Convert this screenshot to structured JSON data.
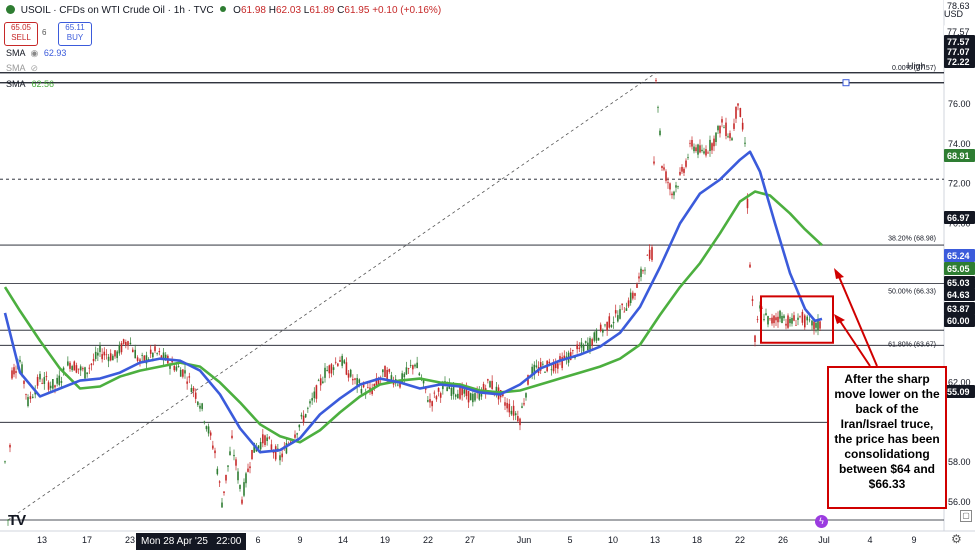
{
  "header": {
    "symbol": "USOIL · CFDs on WTI Crude Oil · 1h · TVC",
    "ohlc_prefix_o": "O",
    "open": "61.98",
    "ohlc_prefix_h": "H",
    "high": "62.03",
    "ohlc_prefix_l": "L",
    "low": "61.89",
    "ohlc_prefix_c": "C",
    "close": "61.95",
    "change": "+0.10 (+0.16%)",
    "sell_price": "65.05",
    "sell_label": "SELL",
    "spread": "6",
    "buy_price": "65.11",
    "buy_label": "BUY",
    "currency": "USD",
    "sma1_label": "SMA",
    "sma1_value": "62.93",
    "sma2_label": "SMA",
    "sma3_label": "SMA",
    "sma3_value": "62.56"
  },
  "colors": {
    "sma_blue": "#3b5bdb",
    "sma_green": "#4caf3f",
    "candle_up": "#2e7d32",
    "candle_down": "#c62828",
    "annotation": "#d00000"
  },
  "annotation_text": "After the sharp move lower on the back of the Iran/Israel truce, the price has been consolidationg between $64 and $66.33",
  "cursor_date_label": "Mon 28 Apr '25   22:00",
  "chart_data": {
    "type": "line",
    "title": "USOIL · CFDs on WTI Crude Oil · 1h · TVC",
    "ylim": [
      54.6,
      78.9
    ],
    "xlim": [
      0,
      975
    ],
    "y_ticks": [
      "76.00",
      "74.00",
      "72.00",
      "70.00",
      "68.00",
      "62.00",
      "58.00",
      "56.00"
    ],
    "x_ticks": [
      {
        "label": "13",
        "x": 42
      },
      {
        "label": "17",
        "x": 87
      },
      {
        "label": "23",
        "x": 130
      },
      {
        "label": "6",
        "x": 258
      },
      {
        "label": "9",
        "x": 300
      },
      {
        "label": "14",
        "x": 343
      },
      {
        "label": "19",
        "x": 385
      },
      {
        "label": "22",
        "x": 428
      },
      {
        "label": "27",
        "x": 470
      },
      {
        "label": "Jun",
        "x": 524
      },
      {
        "label": "5",
        "x": 570
      },
      {
        "label": "10",
        "x": 613
      },
      {
        "label": "13",
        "x": 655
      },
      {
        "label": "18",
        "x": 697
      },
      {
        "label": "22",
        "x": 740
      },
      {
        "label": "26",
        "x": 783
      },
      {
        "label": "Jul",
        "x": 824
      },
      {
        "label": "4",
        "x": 870
      },
      {
        "label": "9",
        "x": 914
      }
    ],
    "price_labels": [
      {
        "value": "78.63",
        "bg": "#ffffff",
        "fg": "#131722"
      },
      {
        "value": "77.57",
        "bg": "#ffffff",
        "fg": "#131722"
      },
      {
        "value": "77.57",
        "bg": "#131722",
        "fg": "#ffffff"
      },
      {
        "value": "77.07",
        "bg": "#131722",
        "fg": "#ffffff"
      },
      {
        "value": "72.22",
        "bg": "#131722",
        "fg": "#ffffff"
      },
      {
        "value": "68.91",
        "bg": "#2e7d32",
        "fg": "#ffffff"
      },
      {
        "value": "66.97",
        "bg": "#131722",
        "fg": "#ffffff"
      },
      {
        "value": "65.24",
        "bg": "#3b5bdb",
        "fg": "#ffffff"
      },
      {
        "value": "65.05",
        "bg": "#2e7d32",
        "fg": "#ffffff"
      },
      {
        "value": "65.03",
        "bg": "#131722",
        "fg": "#ffffff"
      },
      {
        "value": "64.63",
        "bg": "#131722",
        "fg": "#ffffff"
      },
      {
        "value": "63.87",
        "bg": "#131722",
        "fg": "#ffffff"
      },
      {
        "value": "60.00",
        "bg": "#131722",
        "fg": "#ffffff"
      },
      {
        "value": "55.09",
        "bg": "#131722",
        "fg": "#ffffff"
      }
    ],
    "high_label": "High",
    "horizontal_lines": [
      77.57,
      77.07,
      72.22,
      68.91,
      66.97,
      64.63,
      63.87,
      60.0,
      55.09
    ],
    "fib_levels": [
      {
        "label": "0.00% (77.57)",
        "value": 77.57
      },
      {
        "label": "38.20% (68.98)",
        "value": 68.98
      },
      {
        "label": "50.00% (66.33)",
        "value": 66.33
      },
      {
        "label": "61.80% (63.67)",
        "value": 63.67
      }
    ],
    "consolidation_box": {
      "x_start": "Jun 23",
      "x_end": "Jun 27",
      "low": 64.0,
      "high": 66.33
    },
    "series": [
      {
        "name": "SMA",
        "color": "#3b5bdb",
        "points": [
          [
            5,
            65.5
          ],
          [
            20,
            62.5
          ],
          [
            40,
            61.3
          ],
          [
            60,
            61.7
          ],
          [
            80,
            62.1
          ],
          [
            100,
            62.2
          ],
          [
            120,
            62.5
          ],
          [
            140,
            63.0
          ],
          [
            160,
            63.2
          ],
          [
            180,
            63.1
          ],
          [
            200,
            62.6
          ],
          [
            220,
            61.4
          ],
          [
            240,
            59.7
          ],
          [
            260,
            58.5
          ],
          [
            280,
            58.6
          ],
          [
            300,
            59.2
          ],
          [
            320,
            60.4
          ],
          [
            340,
            61.2
          ],
          [
            360,
            61.9
          ],
          [
            380,
            62.2
          ],
          [
            400,
            62.0
          ],
          [
            420,
            61.7
          ],
          [
            440,
            61.9
          ],
          [
            460,
            61.8
          ],
          [
            480,
            61.5
          ],
          [
            500,
            61.4
          ],
          [
            520,
            61.9
          ],
          [
            540,
            62.7
          ],
          [
            560,
            63.1
          ],
          [
            580,
            63.4
          ],
          [
            600,
            63.8
          ],
          [
            620,
            64.5
          ],
          [
            640,
            65.8
          ],
          [
            660,
            67.8
          ],
          [
            680,
            70.0
          ],
          [
            700,
            71.5
          ],
          [
            720,
            72.2
          ],
          [
            740,
            73.2
          ],
          [
            750,
            73.6
          ],
          [
            760,
            72.6
          ],
          [
            775,
            70.0
          ],
          [
            790,
            67.5
          ],
          [
            805,
            65.7
          ],
          [
            815,
            65.1
          ],
          [
            822,
            65.2
          ]
        ]
      },
      {
        "name": "SMA",
        "color": "#4caf3f",
        "points": [
          [
            5,
            66.8
          ],
          [
            20,
            65.6
          ],
          [
            40,
            64.1
          ],
          [
            60,
            62.7
          ],
          [
            80,
            61.7
          ],
          [
            100,
            61.8
          ],
          [
            120,
            62.3
          ],
          [
            140,
            62.6
          ],
          [
            160,
            62.8
          ],
          [
            180,
            63.0
          ],
          [
            200,
            62.8
          ],
          [
            220,
            62.0
          ],
          [
            240,
            61.0
          ],
          [
            260,
            59.9
          ],
          [
            280,
            59.3
          ],
          [
            300,
            59.0
          ],
          [
            320,
            59.6
          ],
          [
            340,
            60.5
          ],
          [
            360,
            61.3
          ],
          [
            380,
            61.9
          ],
          [
            400,
            62.1
          ],
          [
            420,
            62.2
          ],
          [
            440,
            62.0
          ],
          [
            460,
            61.9
          ],
          [
            480,
            61.6
          ],
          [
            500,
            61.5
          ],
          [
            520,
            61.6
          ],
          [
            540,
            61.9
          ],
          [
            560,
            62.2
          ],
          [
            580,
            62.5
          ],
          [
            600,
            62.8
          ],
          [
            620,
            63.2
          ],
          [
            640,
            63.9
          ],
          [
            660,
            65.4
          ],
          [
            680,
            66.8
          ],
          [
            700,
            68.0
          ],
          [
            720,
            69.5
          ],
          [
            740,
            71.1
          ],
          [
            755,
            71.6
          ],
          [
            770,
            71.4
          ],
          [
            790,
            70.5
          ],
          [
            805,
            69.7
          ],
          [
            822,
            68.9
          ]
        ]
      },
      {
        "name": "Price",
        "color": "#2e7d32",
        "points": [
          [
            5,
            58.0
          ],
          [
            8,
            55.1
          ],
          [
            12,
            62.5
          ],
          [
            20,
            63.1
          ],
          [
            28,
            61.0
          ],
          [
            40,
            62.2
          ],
          [
            55,
            61.8
          ],
          [
            70,
            63.0
          ],
          [
            85,
            62.5
          ],
          [
            100,
            63.5
          ],
          [
            115,
            63.3
          ],
          [
            128,
            64.2
          ],
          [
            140,
            63.0
          ],
          [
            155,
            63.5
          ],
          [
            170,
            63.0
          ],
          [
            185,
            62.5
          ],
          [
            200,
            61.0
          ],
          [
            215,
            58.5
          ],
          [
            222,
            56.0
          ],
          [
            232,
            59.0
          ],
          [
            242,
            56.2
          ],
          [
            252,
            58.5
          ],
          [
            265,
            59.2
          ],
          [
            280,
            58.2
          ],
          [
            295,
            59.5
          ],
          [
            310,
            60.8
          ],
          [
            325,
            62.5
          ],
          [
            340,
            63.2
          ],
          [
            355,
            62.0
          ],
          [
            370,
            61.5
          ],
          [
            385,
            62.5
          ],
          [
            400,
            62.0
          ],
          [
            415,
            63.0
          ],
          [
            430,
            61.0
          ],
          [
            445,
            61.8
          ],
          [
            460,
            61.5
          ],
          [
            475,
            61.2
          ],
          [
            490,
            62.0
          ],
          [
            505,
            61.0
          ],
          [
            520,
            60.2
          ],
          [
            530,
            62.5
          ],
          [
            545,
            62.8
          ],
          [
            560,
            63.0
          ],
          [
            575,
            63.5
          ],
          [
            590,
            64.0
          ],
          [
            605,
            64.8
          ],
          [
            620,
            65.5
          ],
          [
            635,
            66.5
          ],
          [
            645,
            68.0
          ],
          [
            652,
            68.5
          ],
          [
            656,
            77.5
          ],
          [
            662,
            73.0
          ],
          [
            672,
            71.5
          ],
          [
            682,
            72.5
          ],
          [
            692,
            74.0
          ],
          [
            702,
            73.5
          ],
          [
            712,
            74.0
          ],
          [
            722,
            75.0
          ],
          [
            732,
            74.3
          ],
          [
            738,
            76.2
          ],
          [
            745,
            74.0
          ],
          [
            750,
            68.0
          ],
          [
            755,
            64.1
          ],
          [
            760,
            65.7
          ],
          [
            770,
            65.0
          ],
          [
            780,
            65.4
          ],
          [
            790,
            65.0
          ],
          [
            800,
            65.3
          ],
          [
            812,
            64.8
          ],
          [
            822,
            64.9
          ]
        ]
      }
    ]
  }
}
